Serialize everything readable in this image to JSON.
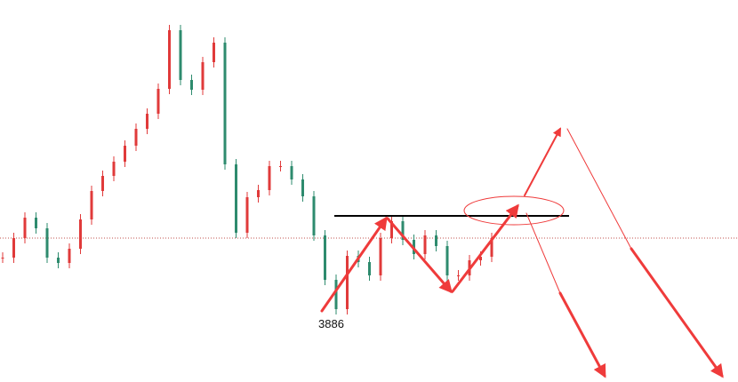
{
  "chart_data": {
    "type": "candlestick",
    "annotation": "3886",
    "values": [
      3944,
      3966,
      3989,
      3977,
      3944,
      3938,
      3954,
      3987,
      4019,
      4036,
      4052,
      4070,
      4089,
      4106,
      4134,
      4200,
      4144,
      4133,
      4164,
      4186,
      4049,
      3972,
      4012,
      4020,
      4047,
      4047,
      4032,
      4013,
      3969,
      3919,
      3886,
      3946,
      3939,
      3924,
      3966,
      3985,
      3964,
      3948,
      3969,
      3957,
      3924,
      3924,
      3941,
      3945,
      3966
    ],
    "up_color": "#e03a3a",
    "down_color": "#2e8b6e",
    "ylim": [
      3804,
      4234
    ]
  }
}
